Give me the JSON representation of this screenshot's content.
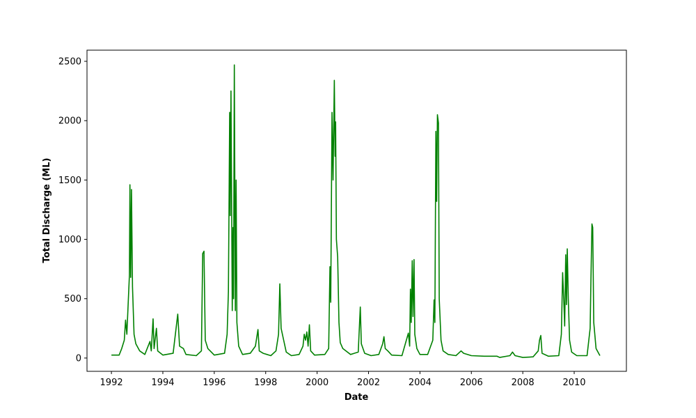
{
  "chart_data": {
    "type": "line",
    "x_label": "Date",
    "y_label": "Total Discharge (ML)",
    "x": [
      1992.0,
      1992.3,
      1992.4,
      1992.5,
      1992.55,
      1992.6,
      1992.65,
      1992.7,
      1992.72,
      1992.75,
      1992.78,
      1992.82,
      1992.88,
      1992.95,
      1993.1,
      1993.3,
      1993.5,
      1993.55,
      1993.62,
      1993.66,
      1993.75,
      1993.8,
      1994.0,
      1994.4,
      1994.58,
      1994.65,
      1994.8,
      1994.9,
      1995.3,
      1995.5,
      1995.55,
      1995.6,
      1995.65,
      1995.75,
      1996.0,
      1996.4,
      1996.5,
      1996.55,
      1996.6,
      1996.62,
      1996.65,
      1996.7,
      1996.73,
      1996.75,
      1996.78,
      1996.82,
      1996.85,
      1996.88,
      1996.95,
      1997.1,
      1997.4,
      1997.6,
      1997.7,
      1997.75,
      1997.9,
      1998.2,
      1998.4,
      1998.5,
      1998.55,
      1998.6,
      1998.7,
      1998.8,
      1999.0,
      1999.3,
      1999.45,
      1999.5,
      1999.55,
      1999.6,
      1999.65,
      1999.7,
      1999.75,
      1999.9,
      2000.3,
      2000.45,
      2000.5,
      2000.53,
      2000.58,
      2000.62,
      2000.67,
      2000.7,
      2000.72,
      2000.75,
      2000.8,
      2000.85,
      2000.9,
      2001.0,
      2001.3,
      2001.6,
      2001.68,
      2001.72,
      2001.85,
      2002.1,
      2002.4,
      2002.55,
      2002.6,
      2002.65,
      2002.75,
      2002.9,
      2003.3,
      2003.55,
      2003.6,
      2003.63,
      2003.66,
      2003.7,
      2003.73,
      2003.77,
      2003.8,
      2003.88,
      2004.0,
      2004.3,
      2004.5,
      2004.55,
      2004.58,
      2004.62,
      2004.65,
      2004.68,
      2004.72,
      2004.75,
      2004.82,
      2004.9,
      2005.1,
      2005.4,
      2005.6,
      2005.7,
      2006.0,
      2006.5,
      2007.0,
      2007.1,
      2007.5,
      2007.6,
      2007.7,
      2008.0,
      2008.4,
      2008.6,
      2008.65,
      2008.7,
      2008.75,
      2009.0,
      2009.4,
      2009.5,
      2009.55,
      2009.6,
      2009.63,
      2009.67,
      2009.7,
      2009.73,
      2009.77,
      2009.82,
      2009.9,
      2010.1,
      2010.5,
      2010.62,
      2010.65,
      2010.69,
      2010.72,
      2010.76,
      2010.85,
      2011.0
    ],
    "series": [
      {
        "color": "#008000",
        "values": [
          25,
          25,
          80,
          150,
          320,
          200,
          450,
          700,
          1460,
          680,
          1420,
          600,
          200,
          120,
          60,
          30,
          140,
          60,
          330,
          80,
          250,
          60,
          25,
          40,
          370,
          100,
          80,
          30,
          20,
          60,
          880,
          900,
          150,
          80,
          25,
          40,
          200,
          560,
          2070,
          1200,
          2250,
          400,
          1100,
          500,
          2470,
          400,
          1500,
          300,
          100,
          30,
          40,
          100,
          240,
          60,
          40,
          20,
          60,
          200,
          625,
          250,
          150,
          50,
          20,
          30,
          100,
          200,
          150,
          220,
          100,
          280,
          60,
          25,
          30,
          80,
          770,
          470,
          2070,
          1500,
          2340,
          1700,
          1990,
          1000,
          850,
          300,
          130,
          80,
          30,
          50,
          430,
          120,
          40,
          20,
          30,
          120,
          180,
          80,
          60,
          25,
          20,
          210,
          100,
          580,
          300,
          820,
          350,
          830,
          200,
          80,
          30,
          30,
          150,
          490,
          300,
          1910,
          1320,
          2050,
          1980,
          500,
          150,
          60,
          30,
          20,
          60,
          40,
          20,
          15,
          15,
          5,
          20,
          50,
          20,
          5,
          10,
          60,
          150,
          190,
          40,
          15,
          20,
          200,
          720,
          450,
          270,
          870,
          450,
          920,
          500,
          150,
          50,
          20,
          20,
          250,
          650,
          1130,
          1100,
          300,
          80,
          20
        ]
      }
    ],
    "xlim": [
      1991.05,
      2012.03
    ],
    "xticks": [
      1992,
      1994,
      1996,
      1998,
      2000,
      2002,
      2004,
      2006,
      2008,
      2010
    ],
    "ylim": [
      -112,
      2594
    ],
    "yticks": [
      0,
      500,
      1000,
      1500,
      2000,
      2500
    ]
  }
}
